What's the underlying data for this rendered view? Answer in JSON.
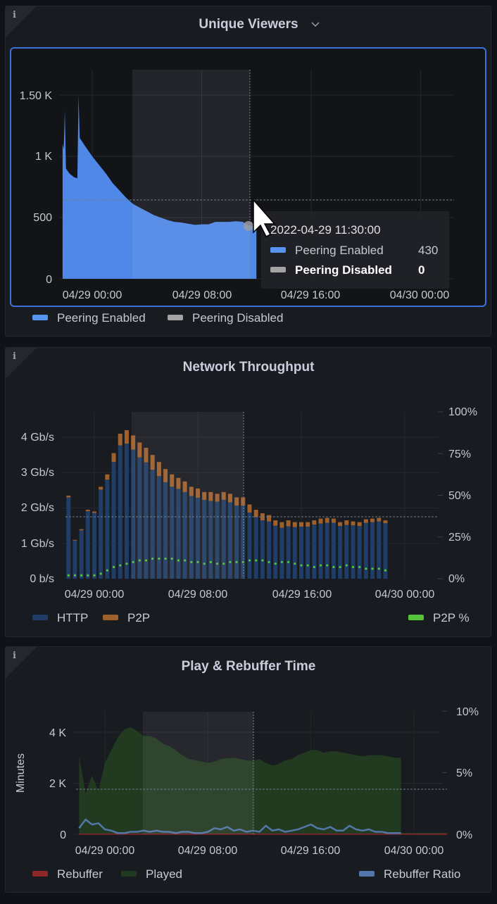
{
  "panels": {
    "viewers": {
      "title": "Unique Viewers",
      "y_ticks": [
        "0",
        "500",
        "1 K",
        "1.50 K"
      ],
      "x_ticks": [
        "04/29 00:00",
        "04/29 08:00",
        "04/29 16:00",
        "04/30 00:00"
      ],
      "legend": [
        "Peering Enabled",
        "Peering Disabled"
      ],
      "tooltip": {
        "time": "2022-04-29 11:30:00",
        "rows": [
          {
            "label": "Peering Enabled",
            "value": "430"
          },
          {
            "label": "Peering Disabled",
            "value": "0"
          }
        ]
      }
    },
    "throughput": {
      "title": "Network Throughput",
      "y_ticks": [
        "0 b/s",
        "1 Gb/s",
        "2 Gb/s",
        "3 Gb/s",
        "4 Gb/s"
      ],
      "y2_ticks": [
        "0%",
        "25%",
        "50%",
        "75%",
        "100%"
      ],
      "x_ticks": [
        "04/29 00:00",
        "04/29 08:00",
        "04/29 16:00",
        "04/30 00:00"
      ],
      "legend": [
        "HTTP",
        "P2P",
        "P2P %"
      ]
    },
    "play": {
      "title": "Play & Rebuffer Time",
      "y_label": "Minutes",
      "y_ticks": [
        "0",
        "2 K",
        "4 K"
      ],
      "y2_ticks": [
        "0%",
        "5%",
        "10%"
      ],
      "x_ticks": [
        "04/29 00:00",
        "04/29 08:00",
        "04/29 16:00",
        "04/30 00:00"
      ],
      "legend": [
        "Rebuffer",
        "Played",
        "Rebuffer Ratio"
      ]
    }
  },
  "colors": {
    "peering_enabled": "#5088e8",
    "peering_disabled": "#a3a3a3",
    "http": "#1f3d66",
    "p2p": "#a0602c",
    "p2p_pct": "#56c43a",
    "rebuffer": "#8e2828",
    "played": "#223a20",
    "rebuffer_ratio": "#5277a8",
    "focus_border": "#3d71d9"
  },
  "chart_data": [
    {
      "type": "area",
      "title": "Unique Viewers",
      "y_range": [
        0,
        1500
      ],
      "series": [
        {
          "name": "Peering Enabled",
          "points": [
            [
              "04/28 21:50",
              1100
            ],
            [
              "04/28 21:55",
              1060
            ],
            [
              "04/28 22:00",
              1370
            ],
            [
              "04/28 22:05",
              900
            ],
            [
              "04/28 22:20",
              860
            ],
            [
              "04/28 22:40",
              830
            ],
            [
              "04/28 22:55",
              820
            ],
            [
              "04/28 23:00",
              1500
            ],
            [
              "04/28 23:05",
              1150
            ],
            [
              "04/28 23:30",
              1080
            ],
            [
              "04/29 00:00",
              1000
            ],
            [
              "04/29 00:30",
              930
            ],
            [
              "04/29 01:00",
              860
            ],
            [
              "04/29 01:30",
              780
            ],
            [
              "04/29 02:00",
              720
            ],
            [
              "04/29 02:30",
              660
            ],
            [
              "04/29 03:00",
              610
            ],
            [
              "04/29 03:30",
              580
            ],
            [
              "04/29 04:00",
              550
            ],
            [
              "04/29 04:30",
              520
            ],
            [
              "04/29 05:00",
              500
            ],
            [
              "04/29 05:30",
              480
            ],
            [
              "04/29 06:00",
              465
            ],
            [
              "04/29 06:30",
              460
            ],
            [
              "04/29 07:00",
              450
            ],
            [
              "04/29 07:30",
              440
            ],
            [
              "04/29 08:00",
              445
            ],
            [
              "04/29 08:30",
              445
            ],
            [
              "04/29 09:00",
              465
            ],
            [
              "04/29 09:30",
              465
            ],
            [
              "04/29 10:00",
              465
            ],
            [
              "04/29 10:30",
              470
            ],
            [
              "04/29 11:00",
              465
            ],
            [
              "04/29 11:30",
              430
            ],
            [
              "04/29 12:00",
              430
            ]
          ]
        },
        {
          "name": "Peering Disabled",
          "points": [
            [
              "04/29 11:30",
              0
            ]
          ]
        }
      ]
    },
    {
      "type": "bar",
      "title": "Network Throughput",
      "x_start": "04/28 22:00",
      "step_minutes": 30,
      "y_range": [
        0,
        4.5
      ],
      "y_unit": "Gb/s",
      "y2_range": [
        0,
        100
      ],
      "series": [
        {
          "name": "HTTP",
          "values": [
            2.3,
            1.08,
            1.37,
            1.91,
            1.86,
            2.52,
            2.8,
            3.3,
            3.77,
            3.82,
            3.65,
            3.43,
            3.29,
            3.08,
            2.9,
            2.73,
            2.6,
            2.54,
            2.45,
            2.34,
            2.29,
            2.23,
            2.2,
            2.18,
            2.23,
            2.16,
            2.07,
            2.07,
            1.87,
            1.74,
            1.65,
            1.62,
            1.5,
            1.44,
            1.48,
            1.46,
            1.47,
            1.47,
            1.53,
            1.56,
            1.58,
            1.58,
            1.49,
            1.52,
            1.51,
            1.49,
            1.58,
            1.6,
            1.62,
            1.57
          ]
        },
        {
          "name": "P2P",
          "values": [
            0.05,
            0.02,
            0.03,
            0.04,
            0.04,
            0.08,
            0.15,
            0.25,
            0.33,
            0.38,
            0.4,
            0.42,
            0.41,
            0.42,
            0.4,
            0.37,
            0.35,
            0.31,
            0.3,
            0.26,
            0.26,
            0.22,
            0.25,
            0.22,
            0.22,
            0.24,
            0.23,
            0.23,
            0.23,
            0.21,
            0.2,
            0.18,
            0.15,
            0.16,
            0.17,
            0.14,
            0.13,
            0.13,
            0.12,
            0.14,
            0.14,
            0.12,
            0.11,
            0.13,
            0.11,
            0.11,
            0.1,
            0.1,
            0.1,
            0.08
          ]
        },
        {
          "name": "P2P %",
          "axis": "right",
          "values": [
            2,
            2,
            2,
            2,
            2,
            3,
            5,
            7,
            8,
            9,
            10,
            11,
            11,
            12,
            12,
            12,
            12,
            11,
            11,
            10,
            10,
            9,
            10,
            9,
            9,
            10,
            10,
            10,
            11,
            11,
            11,
            10,
            9,
            10,
            10,
            9,
            8,
            8,
            7,
            8,
            8,
            7,
            7,
            8,
            7,
            7,
            6,
            6,
            6,
            5
          ]
        }
      ]
    },
    {
      "type": "area",
      "title": "Play & Rebuffer Time",
      "x_start": "04/28 22:00",
      "step_minutes": 30,
      "ylabel": "Minutes",
      "y_range": [
        0,
        4800
      ],
      "y2_range": [
        0,
        10
      ],
      "series": [
        {
          "name": "Played",
          "values": [
            3050,
            1600,
            2300,
            1700,
            2800,
            3300,
            3800,
            4100,
            4200,
            4050,
            3850,
            3850,
            3750,
            3550,
            3450,
            3300,
            3100,
            2950,
            2900,
            2850,
            2800,
            2850,
            2950,
            2980,
            3000,
            2950,
            2900,
            2880,
            2950,
            2800,
            2700,
            2750,
            2900,
            2950,
            3100,
            3200,
            3300,
            3300,
            3200,
            3250,
            3250,
            3200,
            3150,
            3100,
            3050,
            3100,
            3100,
            3100,
            3050,
            3000,
            3000
          ]
        },
        {
          "name": "Rebuffer",
          "values": [
            5,
            5,
            5,
            5,
            5,
            5,
            5,
            5,
            5,
            5,
            5,
            5,
            5,
            5,
            5,
            5,
            5,
            5,
            5,
            5,
            5,
            5,
            5,
            5,
            5,
            5,
            5,
            5,
            5,
            5,
            5,
            5,
            5,
            5,
            5,
            5,
            5,
            5,
            5,
            5,
            5,
            5,
            5,
            5,
            5,
            5,
            5,
            5,
            5,
            5,
            5
          ]
        },
        {
          "name": "Rebuffer Ratio",
          "axis": "right",
          "values": [
            0.5,
            1.2,
            0.8,
            0.9,
            0.4,
            0.3,
            0.1,
            0.1,
            0.2,
            0.2,
            0.3,
            0.2,
            0.3,
            0.2,
            0.2,
            0.1,
            0.2,
            0.2,
            0.1,
            0.1,
            0.2,
            0.5,
            0.4,
            0.6,
            0.3,
            0.4,
            0.2,
            0.3,
            0.2,
            0.7,
            0.3,
            0.4,
            0.2,
            0.3,
            0.4,
            0.6,
            0.8,
            0.5,
            0.4,
            0.6,
            0.3,
            0.3,
            0.7,
            0.4,
            0.3,
            0.4,
            0.2,
            0.2,
            0.1,
            0.1,
            0.1
          ]
        }
      ]
    }
  ]
}
